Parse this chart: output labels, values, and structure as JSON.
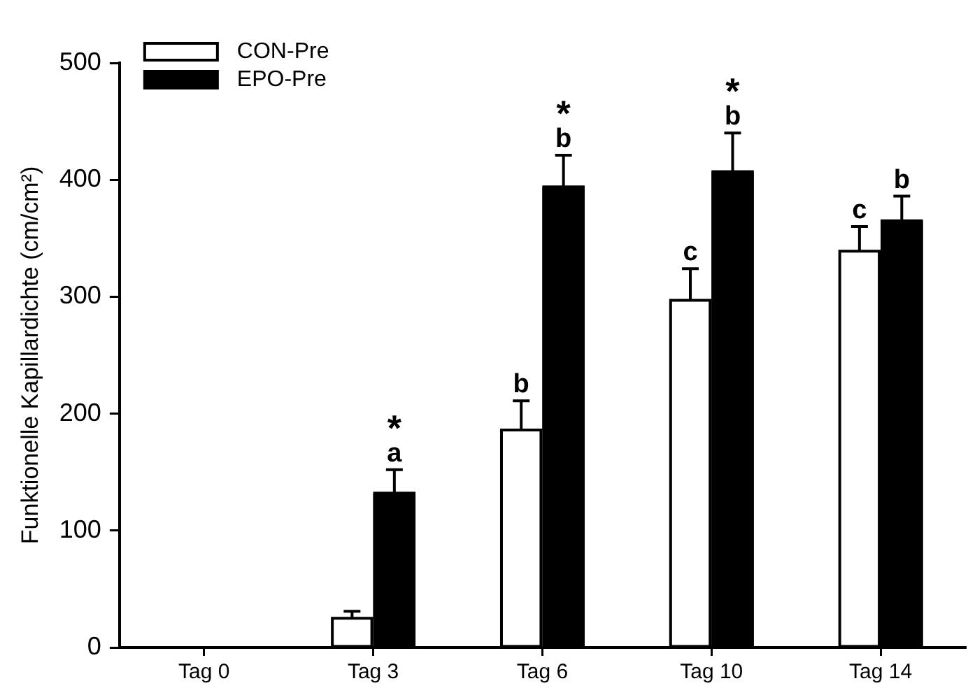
{
  "chart_data": {
    "type": "bar",
    "ylabel": "Funktionelle Kapillardichte (cm/cm²)",
    "categories": [
      "Tag 0",
      "Tag 3",
      "Tag 6",
      "Tag 10",
      "Tag 14"
    ],
    "series": [
      {
        "name": "CON-Pre",
        "color": "#ffffff",
        "values": [
          0,
          25,
          186,
          297,
          339
        ],
        "errors": [
          null,
          6,
          25,
          27,
          21
        ]
      },
      {
        "name": "EPO-Pre",
        "color": "#000000",
        "values": [
          0,
          132,
          394,
          407,
          365
        ],
        "errors": [
          null,
          20,
          27,
          33,
          21
        ]
      }
    ],
    "ylim": [
      0,
      500
    ],
    "yticks": [
      0,
      100,
      200,
      300,
      400,
      500
    ],
    "grid": false,
    "legend": "top left",
    "annotations": [
      {
        "text": "a",
        "x": "Tag 3",
        "y": 132
      },
      {
        "text": "*",
        "x": "Tag 3",
        "y": 132
      },
      {
        "text": "b",
        "x": "Tag 6",
        "y": 186
      },
      {
        "text": "b",
        "x": "Tag 6",
        "y": 394
      },
      {
        "text": "*",
        "x": "Tag 6",
        "y": 394
      },
      {
        "text": "c",
        "x": "Tag 10",
        "y": 297
      },
      {
        "text": "b",
        "x": "Tag 10",
        "y": 407
      },
      {
        "text": "*",
        "x": "Tag 10",
        "y": 407
      },
      {
        "text": "c",
        "x": "Tag 14",
        "y": 339
      },
      {
        "text": "b",
        "x": "Tag 14",
        "y": 365
      }
    ]
  }
}
